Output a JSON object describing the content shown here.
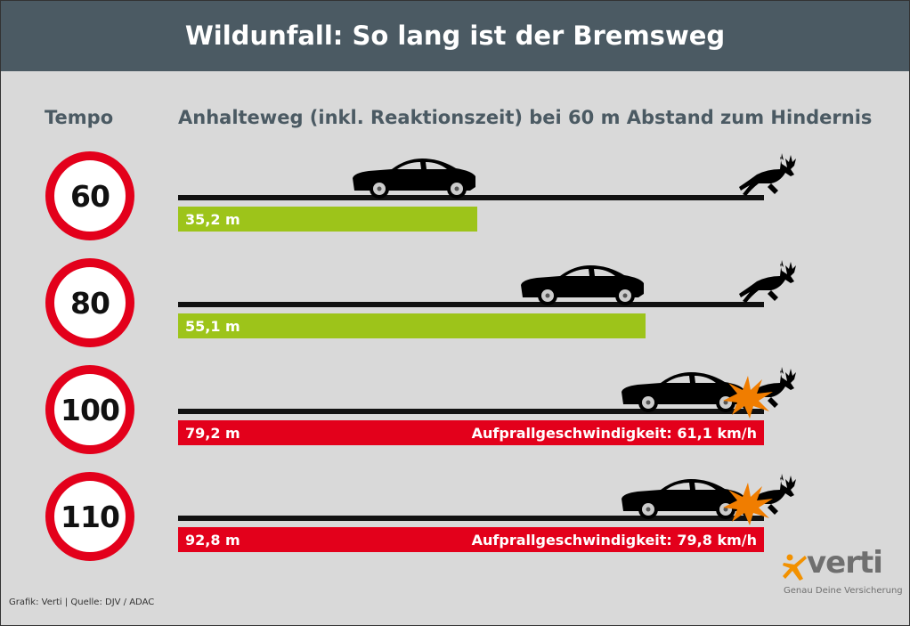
{
  "title": "Wildunfall: So lang ist der Bremsweg",
  "col_tempo": "Tempo",
  "col_chart": "Anhalteweg (inkl. Reaktionszeit) bei 60 m Abstand zum Hindernis",
  "footer": "Grafik: Verti | Quelle: DJV / ADAC",
  "logo": {
    "name": "verti",
    "tagline": "Genau Deine Versicherung"
  },
  "colors": {
    "header": "#4b5a63",
    "safe": "#9dc41a",
    "crash": "#e3001b",
    "impact": "#f07d00"
  },
  "chart_data": {
    "type": "bar",
    "title": "Anhalteweg (inkl. Reaktionszeit) bei 60 m Abstand zum Hindernis",
    "obstacle_distance_m": 60,
    "categories": [
      "60",
      "80",
      "100",
      "110"
    ],
    "rows": [
      {
        "speed": "60",
        "stopping_label": "35,2 m",
        "stopping_m": 35.2,
        "collision": false,
        "impact_label": ""
      },
      {
        "speed": "80",
        "stopping_label": "55,1 m",
        "stopping_m": 55.1,
        "collision": false,
        "impact_label": ""
      },
      {
        "speed": "100",
        "stopping_label": "79,2 m",
        "stopping_m": 79.2,
        "collision": true,
        "impact_label": "Aufprallgeschwindigkeit: 61,1 km/h"
      },
      {
        "speed": "110",
        "stopping_label": "92,8 m",
        "stopping_m": 92.8,
        "collision": true,
        "impact_label": "Aufprallgeschwindigkeit: 79,8 km/h"
      }
    ]
  }
}
